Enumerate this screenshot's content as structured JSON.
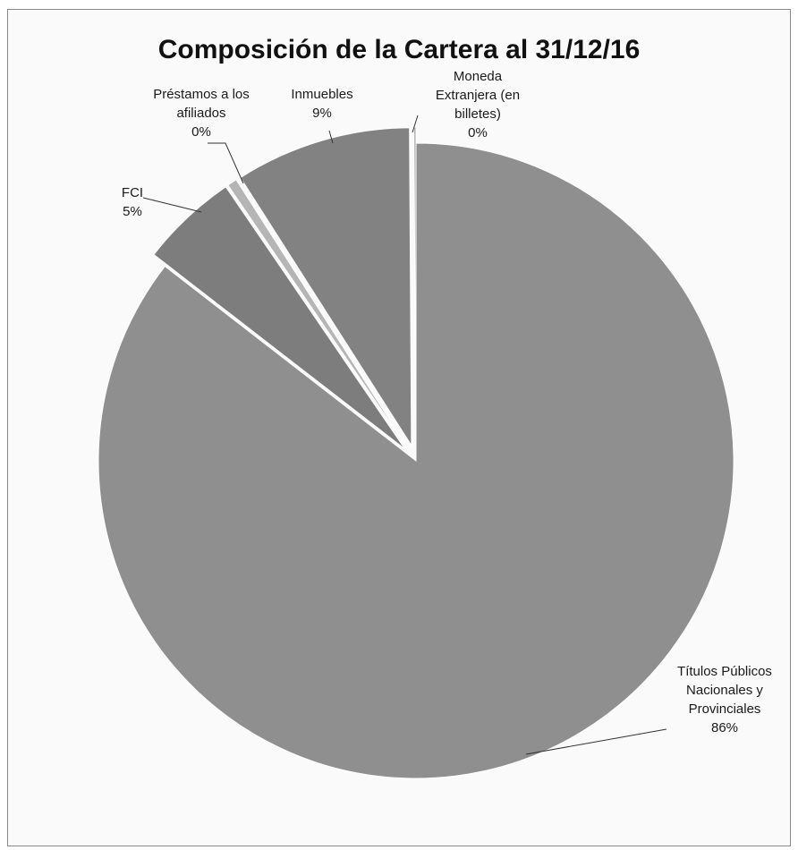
{
  "chart_data": {
    "type": "pie",
    "title": "Composición de la Cartera al 31/12/16",
    "slices": [
      {
        "name": "Títulos Públicos Nacionales y Provinciales",
        "label_lines": [
          "Títulos Públicos",
          "Nacionales y",
          "Provinciales"
        ],
        "value": 86,
        "percent_label": "86%",
        "color": "#8f8f8f",
        "exploded": false
      },
      {
        "name": "FCI",
        "label_lines": [
          "FCI"
        ],
        "value": 5,
        "percent_label": "5%",
        "color": "#7d7d7d",
        "exploded": true
      },
      {
        "name": "Préstamos a los afiliados",
        "label_lines": [
          "Préstamos a los",
          "afiliados"
        ],
        "value": 0.5,
        "percent_label": "0%",
        "color": "#b5b5b5",
        "exploded": true
      },
      {
        "name": "Inmuebles",
        "label_lines": [
          "Inmuebles"
        ],
        "value": 9,
        "percent_label": "9%",
        "color": "#828282",
        "exploded": true
      },
      {
        "name": "Moneda Extranjera (en billetes)",
        "label_lines": [
          "Moneda",
          "Extranjera (en",
          "billetes)"
        ],
        "value": 0.1,
        "percent_label": "0%",
        "color": "#9a9a9a",
        "exploded": true
      }
    ],
    "start_angle_deg": 0,
    "direction": "clockwise",
    "legend": "none",
    "data_labels": "outside with leader lines"
  }
}
